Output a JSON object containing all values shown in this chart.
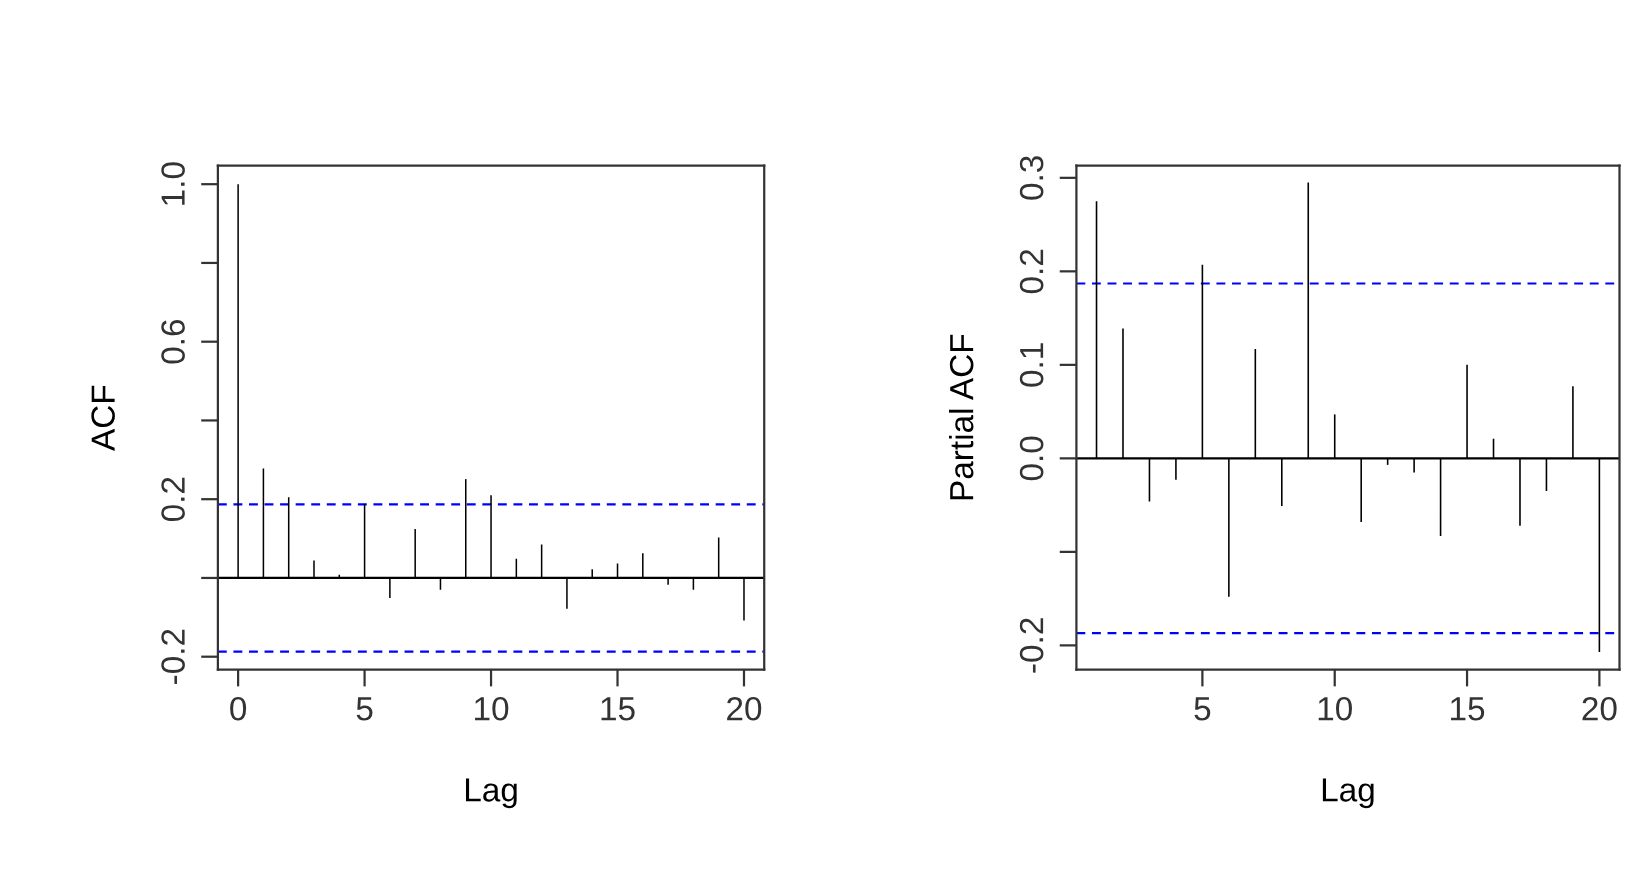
{
  "chart_data": [
    {
      "type": "bar",
      "xlabel": "Lag",
      "ylabel": "ACF",
      "x": [
        0,
        1,
        2,
        3,
        4,
        5,
        6,
        7,
        8,
        9,
        10,
        11,
        12,
        13,
        14,
        15,
        16,
        17,
        18,
        19,
        20
      ],
      "series": [
        {
          "color": "#000000",
          "values": [
            1.0,
            0.278,
            0.205,
            0.044,
            0.008,
            0.188,
            -0.051,
            0.124,
            -0.03,
            0.251,
            0.21,
            0.049,
            0.085,
            -0.078,
            0.022,
            0.037,
            0.063,
            -0.017,
            -0.03,
            0.103,
            -0.108
          ]
        }
      ],
      "xlim": [
        -0.8,
        20.8
      ],
      "xticks": [
        0,
        5,
        10,
        15,
        20
      ],
      "ylim": [
        -0.233,
        1.047
      ],
      "yticks": [
        {
          "value": -0.2,
          "label": "-0.2"
        },
        {
          "value": 0.0,
          "label": null
        },
        {
          "value": 0.2,
          "label": "0.2"
        },
        {
          "value": 0.4,
          "label": null
        },
        {
          "value": 0.6,
          "label": "0.6"
        },
        {
          "value": 0.8,
          "label": null
        },
        {
          "value": 1.0,
          "label": "1.0"
        }
      ],
      "ref_lines": [
        {
          "axis": "y",
          "value": 0,
          "color": "#000000",
          "line_style": "solid"
        },
        {
          "axis": "y",
          "value": 0.187,
          "color": "#0000ff",
          "line_style": "dashed"
        },
        {
          "axis": "y",
          "value": -0.187,
          "color": "#0000ff",
          "line_style": "dashed"
        }
      ],
      "grid": false,
      "legend": false
    },
    {
      "type": "bar",
      "xlabel": "Lag",
      "ylabel": "Partial ACF",
      "x": [
        1,
        2,
        3,
        4,
        5,
        6,
        7,
        8,
        9,
        10,
        11,
        12,
        13,
        14,
        15,
        16,
        17,
        18,
        19,
        20
      ],
      "series": [
        {
          "color": "#000000",
          "values": [
            0.275,
            0.139,
            -0.046,
            -0.023,
            0.207,
            -0.148,
            0.117,
            -0.051,
            0.295,
            0.047,
            -0.068,
            -0.007,
            -0.015,
            -0.083,
            0.1,
            0.021,
            -0.072,
            -0.035,
            0.077,
            -0.207
          ]
        }
      ],
      "xlim": [
        0.24,
        20.76
      ],
      "xticks": [
        5,
        10,
        15,
        20
      ],
      "ylim": [
        -0.226,
        0.313
      ],
      "yticks": [
        {
          "value": -0.2,
          "label": "-0.2"
        },
        {
          "value": -0.1,
          "label": null
        },
        {
          "value": 0.0,
          "label": "0.0"
        },
        {
          "value": 0.1,
          "label": "0.1"
        },
        {
          "value": 0.2,
          "label": "0.2"
        },
        {
          "value": 0.3,
          "label": "0.3"
        }
      ],
      "ref_lines": [
        {
          "axis": "y",
          "value": 0,
          "color": "#000000",
          "line_style": "solid"
        },
        {
          "axis": "y",
          "value": 0.187,
          "color": "#0000ff",
          "line_style": "dashed"
        },
        {
          "axis": "y",
          "value": -0.187,
          "color": "#0000ff",
          "line_style": "dashed"
        }
      ],
      "grid": false,
      "legend": false
    }
  ]
}
